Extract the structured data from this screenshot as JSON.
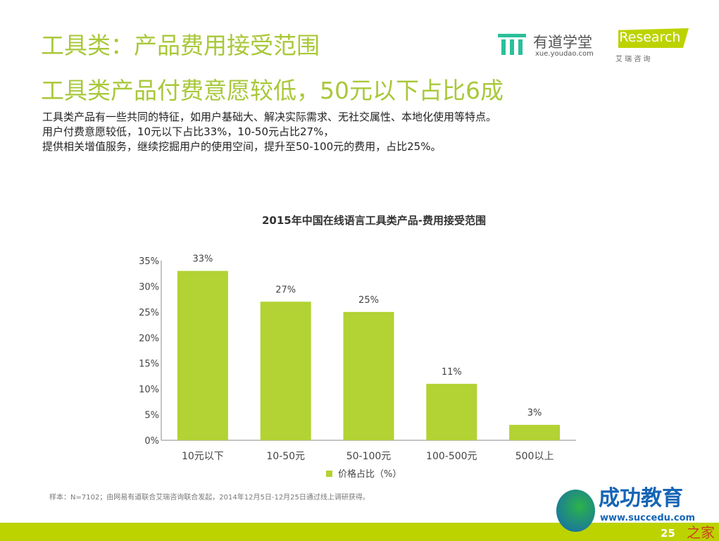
{
  "header": {
    "title": "工具类：产品费用接受范围",
    "subtitle": "工具类产品付费意愿较低，50元以下占比6成",
    "description": [
      "工具类产品有一些共同的特征，如用户基础大、解决实际需求、无社交属性、本地化使用等特点。",
      "用户付费意愿较低，10元以下占比33%，10-50元占比27%，",
      "提供相关增值服务，继续挖掘用户的使用空间，提升至50-100元的费用，占比25%。"
    ]
  },
  "logos": {
    "youdao_name": "有道学堂",
    "youdao_url": "xue.youdao.com",
    "iresearch_name": "iResearch",
    "iresearch_cn": "艾 瑞 咨 询",
    "watermark_name": "成功教育",
    "watermark_url": "www.succedu.com",
    "watermark_site": "之家"
  },
  "footer": {
    "note": "样本：N=7102；由网易有道联合艾瑞咨询联合发起，2014年12月5日-12月25日通过线上调研获得。",
    "page": "25"
  },
  "colors": {
    "accent": "#a9c83a",
    "bar": "#b3d234",
    "band": "#bcd300"
  },
  "chart_data": {
    "type": "bar",
    "title": "2015年中国在线语言工具类产品-费用接受范围",
    "categories": [
      "10元以下",
      "10-50元",
      "50-100元",
      "100-500元",
      "500以上"
    ],
    "series": [
      {
        "name": "价格占比（%）",
        "values": [
          33,
          27,
          25,
          11,
          3
        ]
      }
    ],
    "data_labels": [
      "33%",
      "27%",
      "25%",
      "11%",
      "3%"
    ],
    "yticks": [
      "0%",
      "5%",
      "10%",
      "15%",
      "20%",
      "25%",
      "30%",
      "35%"
    ],
    "ylim": [
      0,
      35
    ],
    "grid": false,
    "legend": "bottom"
  }
}
